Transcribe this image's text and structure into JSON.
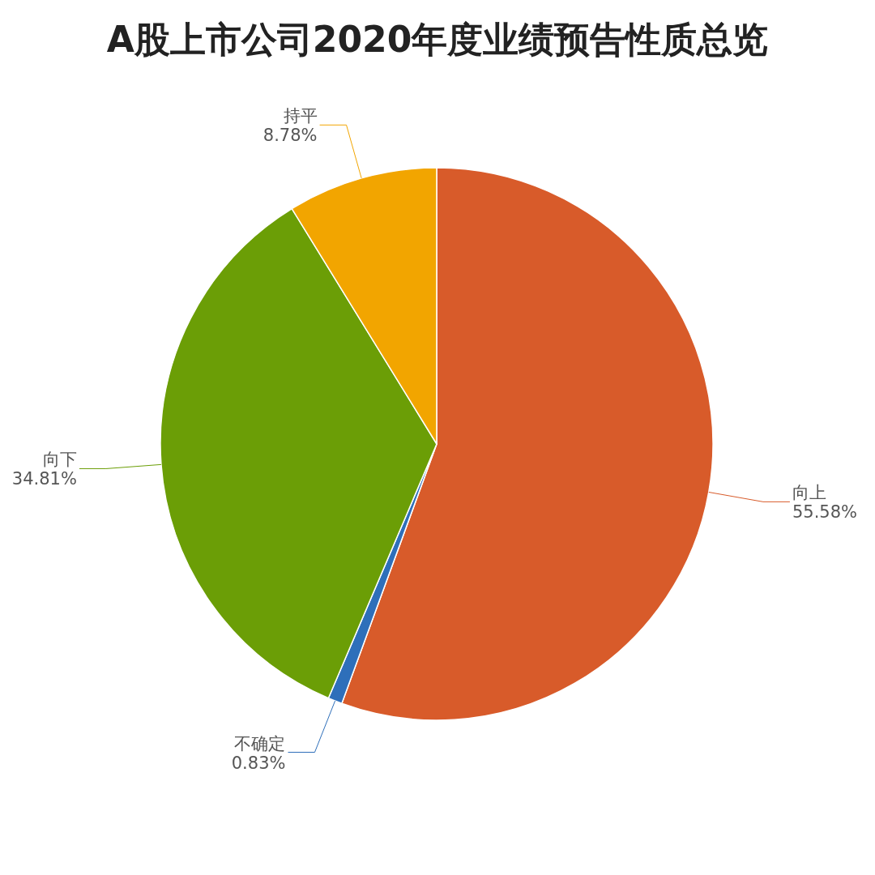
{
  "chart_data": {
    "type": "pie",
    "title": "A股上市公司2020年度业绩预告性质总览",
    "categories": [
      "向上",
      "不确定",
      "向下",
      "持平"
    ],
    "values": [
      55.58,
      0.83,
      34.81,
      8.78
    ],
    "colors": [
      "#d85b2a",
      "#2e6fba",
      "#6b9e06",
      "#f2a500"
    ],
    "value_labels": [
      "55.58%",
      "0.83%",
      "34.81%",
      "8.78%"
    ]
  }
}
